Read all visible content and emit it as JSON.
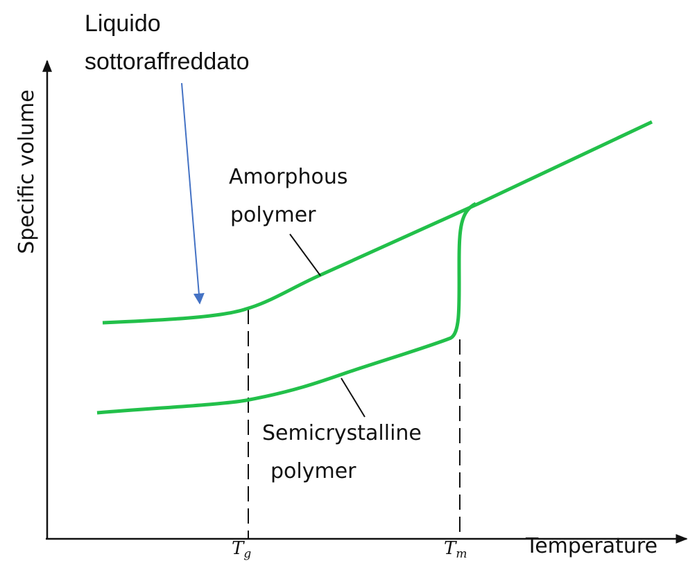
{
  "annotation": {
    "lines": [
      "Liquido",
      "sottoraffreddato"
    ]
  },
  "axes": {
    "y_label": "Specific volume",
    "x_label": "Temperature",
    "ticks": [
      {
        "symbol": "T",
        "subscript": "g"
      },
      {
        "symbol": "T",
        "subscript": "m"
      }
    ]
  },
  "curves": [
    {
      "label": [
        "Amorphous",
        "polymer"
      ]
    },
    {
      "label": [
        "Semicrystalline",
        "polymer"
      ]
    }
  ]
}
